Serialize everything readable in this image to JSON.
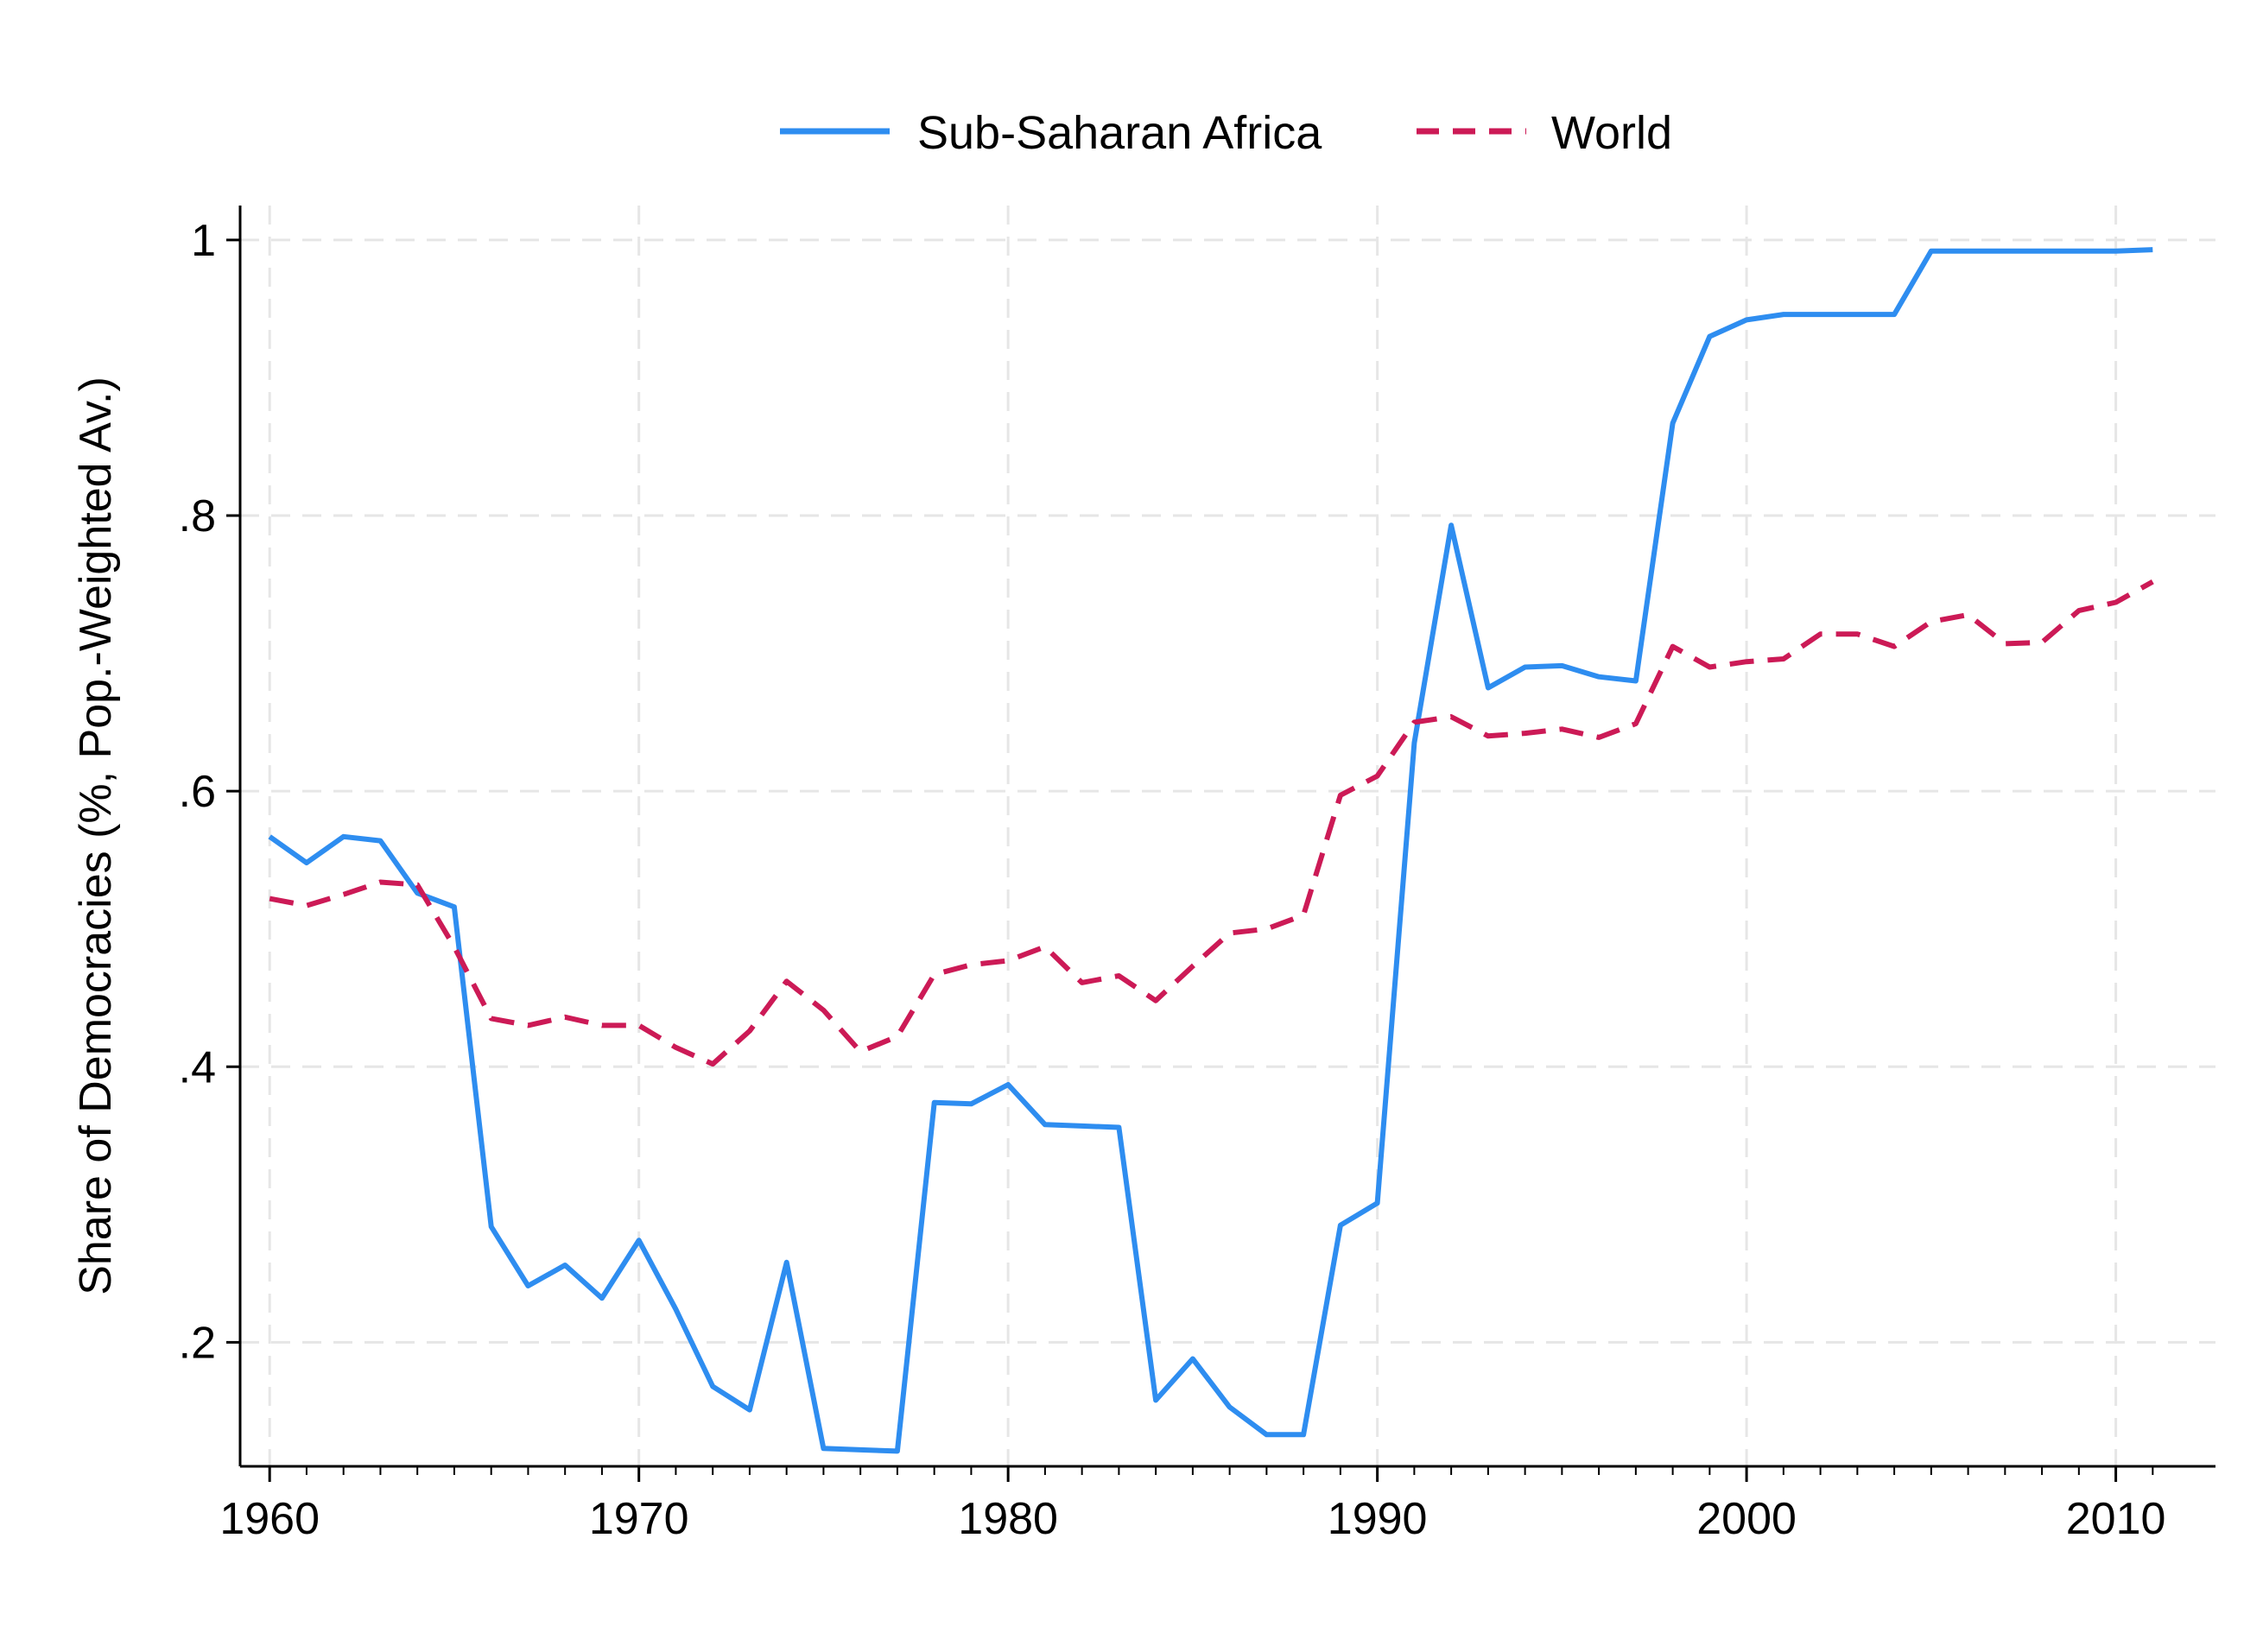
{
  "chart_data": {
    "type": "line",
    "title": "",
    "xlabel": "",
    "ylabel": "Share of Democracies (%, Pop.-Weighted Av.)",
    "xlim": [
      1959.2,
      2012.7
    ],
    "ylim": [
      0.11,
      1.025
    ],
    "xticks": [
      1960,
      1970,
      1980,
      1990,
      2000,
      2010
    ],
    "xtick_labels": [
      "1960",
      "1970",
      "1980",
      "1990",
      "2000",
      "2010"
    ],
    "yticks": [
      0.2,
      0.4,
      0.6,
      0.8,
      1.0
    ],
    "ytick_labels": [
      ".2",
      ".4",
      ".6",
      ".8",
      "1"
    ],
    "grid": true,
    "legend_position": "top-center",
    "x": [
      1960,
      1961,
      1962,
      1963,
      1964,
      1965,
      1966,
      1967,
      1968,
      1969,
      1970,
      1971,
      1972,
      1973,
      1974,
      1975,
      1976,
      1977,
      1978,
      1979,
      1980,
      1981,
      1982,
      1983,
      1984,
      1985,
      1986,
      1987,
      1988,
      1989,
      1990,
      1991,
      1992,
      1993,
      1994,
      1995,
      1996,
      1997,
      1998,
      1999,
      2000,
      2001,
      2002,
      2003,
      2004,
      2005,
      2006,
      2007,
      2008,
      2009,
      2010,
      2011
    ],
    "series": [
      {
        "name": "Sub-Saharan Africa",
        "color": "#2e8df0",
        "style": "solid",
        "values": [
          0.567,
          0.548,
          0.567,
          0.564,
          0.526,
          0.516,
          0.284,
          0.241,
          0.256,
          0.232,
          0.274,
          0.224,
          0.168,
          0.151,
          0.258,
          0.123,
          0.122,
          0.121,
          0.374,
          0.373,
          0.387,
          0.358,
          0.357,
          0.356,
          0.158,
          0.188,
          0.153,
          0.133,
          0.133,
          0.285,
          0.301,
          0.635,
          0.793,
          0.675,
          0.69,
          0.691,
          0.683,
          0.68,
          0.867,
          0.93,
          0.942,
          0.946,
          0.946,
          0.946,
          0.946,
          0.992,
          0.992,
          0.992,
          0.992,
          0.992,
          0.992,
          0.993
        ]
      },
      {
        "name": "World",
        "color": "#cc1a56",
        "style": "dashed",
        "values": [
          0.522,
          0.517,
          0.525,
          0.534,
          0.532,
          0.487,
          0.435,
          0.43,
          0.436,
          0.43,
          0.43,
          0.414,
          0.402,
          0.426,
          0.462,
          0.441,
          0.411,
          0.422,
          0.467,
          0.474,
          0.477,
          0.487,
          0.461,
          0.466,
          0.448,
          0.473,
          0.497,
          0.5,
          0.51,
          0.597,
          0.611,
          0.65,
          0.654,
          0.64,
          0.642,
          0.645,
          0.639,
          0.649,
          0.705,
          0.69,
          0.694,
          0.696,
          0.714,
          0.714,
          0.705,
          0.723,
          0.728,
          0.707,
          0.708,
          0.731,
          0.737,
          0.752
        ]
      }
    ]
  }
}
